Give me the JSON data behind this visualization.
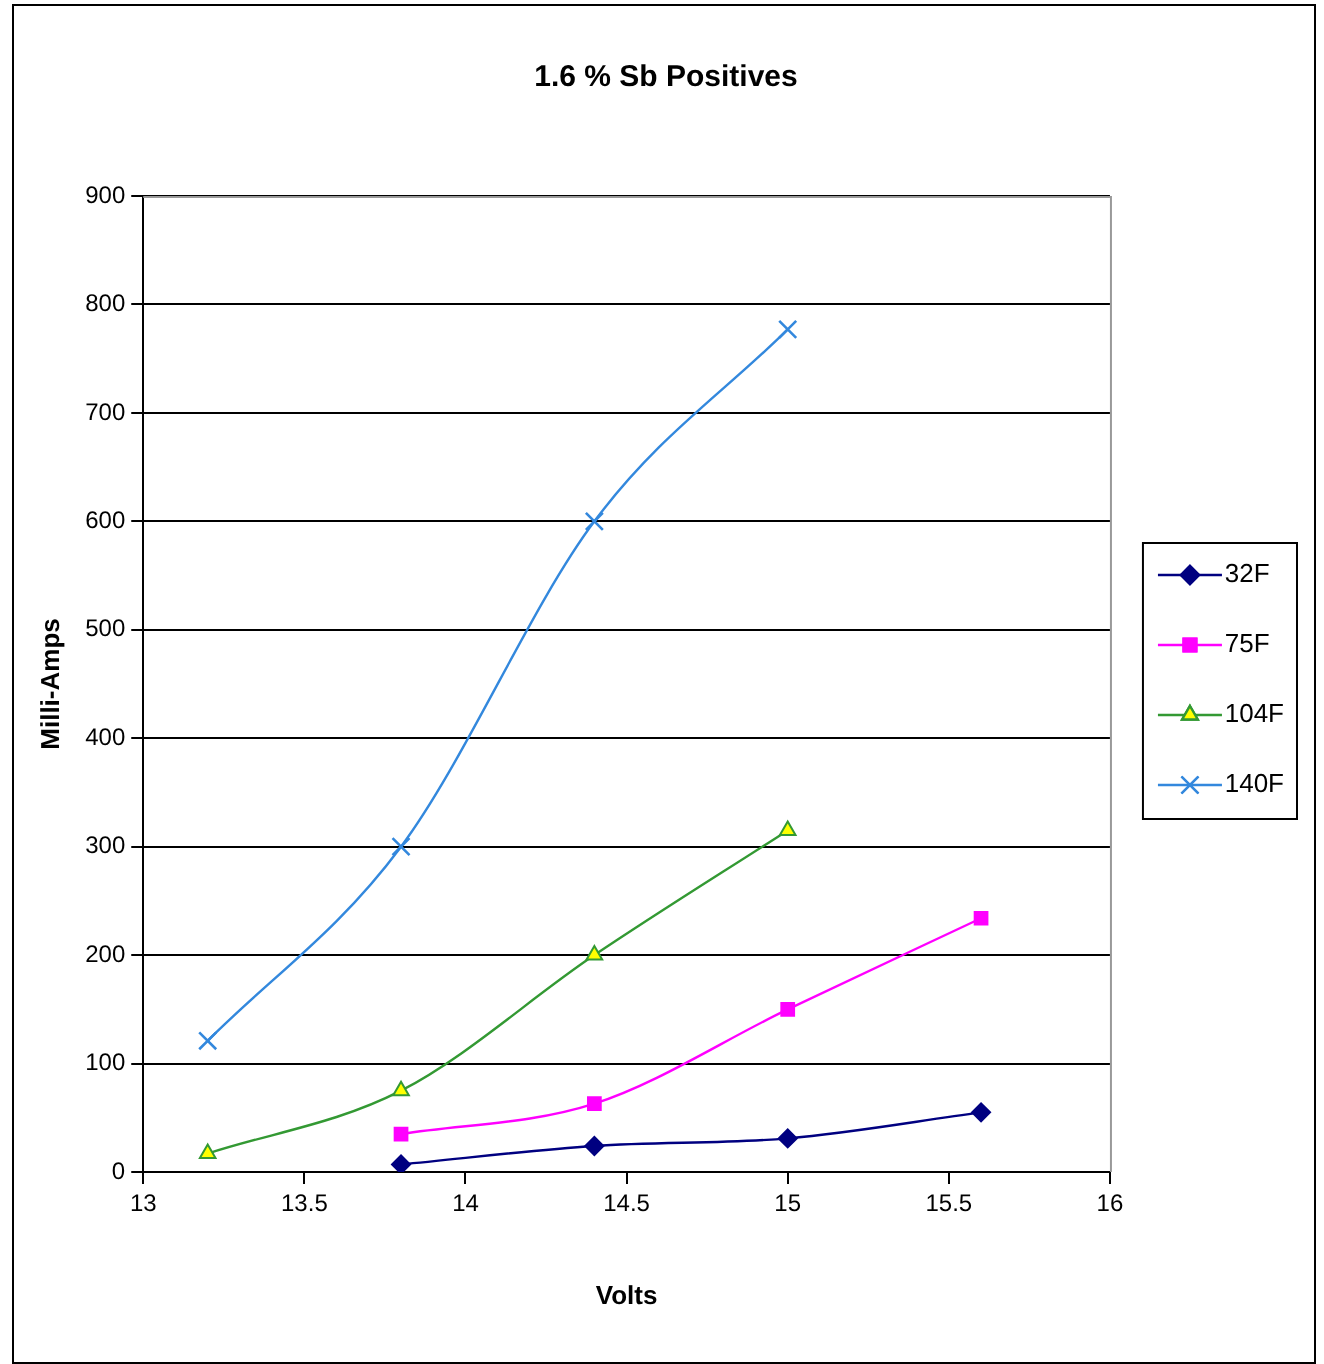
{
  "chart_data": {
    "type": "line",
    "title": "1.6 % Sb Positives",
    "xlabel": "Volts",
    "ylabel": "Milli-Amps",
    "xlim": [
      13,
      16
    ],
    "xticks": [
      13,
      13.5,
      14,
      14.5,
      15,
      15.5,
      16
    ],
    "ylim": [
      0,
      900
    ],
    "yticks": [
      0,
      100,
      200,
      300,
      400,
      500,
      600,
      700,
      800,
      900
    ],
    "grid": "y",
    "legend": "right",
    "series": [
      {
        "name": "32F",
        "color": "#000080",
        "marker": "diamond",
        "x": [
          13.8,
          14.4,
          15,
          15.6
        ],
        "values": [
          7,
          24,
          31,
          55
        ]
      },
      {
        "name": "75F",
        "color": "#ff00ff",
        "marker": "square",
        "x": [
          13.8,
          14.4,
          15,
          15.6
        ],
        "values": [
          35,
          63,
          150,
          234
        ]
      },
      {
        "name": "104F",
        "color": "#339933",
        "marker": "triangle",
        "x": [
          13.2,
          13.8,
          14.4,
          15
        ],
        "values": [
          17,
          75,
          200,
          315
        ]
      },
      {
        "name": "140F",
        "color": "#3388dd",
        "marker": "cross",
        "x": [
          13.2,
          13.8,
          14.4,
          15
        ],
        "values": [
          121,
          300,
          600,
          777
        ]
      }
    ]
  }
}
